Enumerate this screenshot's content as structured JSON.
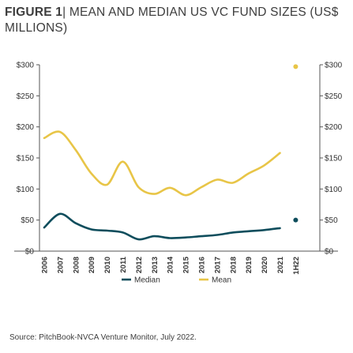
{
  "figure": {
    "label": "FIGURE",
    "number": "1",
    "title": "| MEAN AND MEDIAN US VC FUND SIZES (US$ MILLIONS)",
    "source": "Source: PitchBook-NVCA Venture Monitor, July 2022."
  },
  "chart_data": {
    "type": "line",
    "title": "MEAN AND MEDIAN US VC FUND SIZES (US$ MILLIONS)",
    "x": [
      "2006",
      "2007",
      "2008",
      "2009",
      "2010",
      "2011",
      "2012",
      "2013",
      "2014",
      "2015",
      "2016",
      "2017",
      "2018",
      "2019",
      "2020",
      "2021",
      "1H22"
    ],
    "ylim": [
      0,
      300
    ],
    "yticks": [
      "$0",
      "$50",
      "$100",
      "$150",
      "$200",
      "$250",
      "$300"
    ],
    "yticks_right": [
      "$0",
      "$50",
      "$100",
      "$150",
      "$200",
      "$250",
      "$300"
    ],
    "grid": false,
    "legend_position": "bottom",
    "series": [
      {
        "name": "Median",
        "color": "#0e4d5c",
        "values": [
          38,
          60,
          45,
          35,
          33,
          30,
          19,
          24,
          21,
          22,
          24,
          26,
          30,
          32,
          34,
          37,
          null
        ],
        "highlight": {
          "x": "1H22",
          "value": 50
        }
      },
      {
        "name": "Mean",
        "color": "#e8c547",
        "values": [
          182,
          192,
          163,
          125,
          107,
          144,
          103,
          92,
          102,
          90,
          103,
          115,
          110,
          125,
          138,
          158,
          null
        ],
        "highlight": {
          "x": "1H22",
          "value": 297
        }
      }
    ]
  }
}
